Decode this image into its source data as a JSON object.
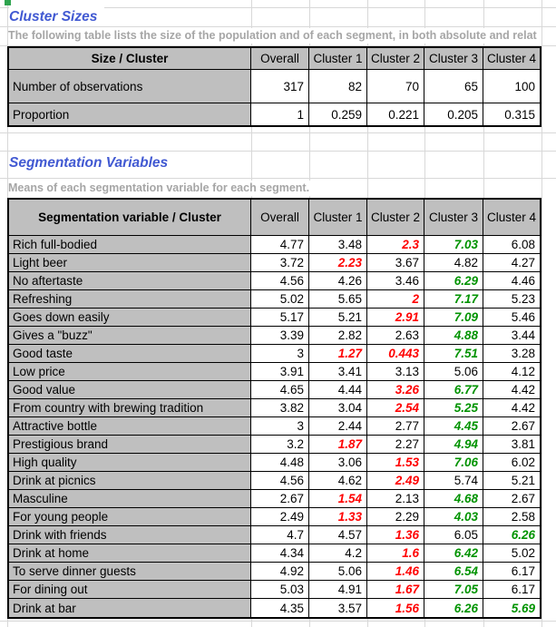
{
  "colors": {
    "title_blue": "#4159d2",
    "subtitle_gray": "#a6a6a6",
    "header_fill": "#bfbfbf",
    "low_value_red": "#ff0000",
    "high_value_green": "#009300",
    "selection_green": "#2ea44e"
  },
  "cluster_sizes": {
    "title": "Cluster Sizes",
    "subtitle": "The following table lists the size of the population and of each segment, in both absolute and relat",
    "table": {
      "header": [
        "Size / Cluster",
        "Overall",
        "Cluster 1",
        "Cluster 2",
        "Cluster 3",
        "Cluster 4"
      ],
      "rows": [
        {
          "label": "Number of observations",
          "values": [
            "317",
            "82",
            "70",
            "65",
            "100"
          ]
        },
        {
          "label": "Proportion",
          "values": [
            "1",
            "0.259",
            "0.221",
            "0.205",
            "0.315"
          ]
        }
      ]
    }
  },
  "segmentation_variables": {
    "title": "Segmentation Variables",
    "subtitle": "Means of each segmentation variable for each segment.",
    "table": {
      "header": [
        "Segmentation variable / Cluster",
        "Overall",
        "Cluster 1",
        "Cluster 2",
        "Cluster 3",
        "Cluster 4"
      ],
      "rows": [
        {
          "label": "Rich full-bodied",
          "values": [
            "4.77",
            "3.48",
            {
              "v": "2.3",
              "s": "low"
            },
            {
              "v": "7.03",
              "s": "high"
            },
            "6.08"
          ]
        },
        {
          "label": "Light beer",
          "values": [
            "3.72",
            {
              "v": "2.23",
              "s": "low"
            },
            "3.67",
            "4.82",
            "4.27"
          ]
        },
        {
          "label": "No aftertaste",
          "values": [
            "4.56",
            "4.26",
            "3.46",
            {
              "v": "6.29",
              "s": "high"
            },
            "4.46"
          ]
        },
        {
          "label": "Refreshing",
          "values": [
            "5.02",
            "5.65",
            {
              "v": "2",
              "s": "low"
            },
            {
              "v": "7.17",
              "s": "high"
            },
            "5.23"
          ]
        },
        {
          "label": "Goes down easily",
          "values": [
            "5.17",
            "5.21",
            {
              "v": "2.91",
              "s": "low"
            },
            {
              "v": "7.09",
              "s": "high"
            },
            "5.46"
          ]
        },
        {
          "label": "Gives a \"buzz\"",
          "values": [
            "3.39",
            "2.82",
            "2.63",
            {
              "v": "4.88",
              "s": "high"
            },
            "3.44"
          ]
        },
        {
          "label": "Good taste",
          "values": [
            "3",
            {
              "v": "1.27",
              "s": "low"
            },
            {
              "v": "0.443",
              "s": "low"
            },
            {
              "v": "7.51",
              "s": "high"
            },
            "3.28"
          ]
        },
        {
          "label": "Low price",
          "values": [
            "3.91",
            "3.41",
            "3.13",
            "5.06",
            "4.12"
          ]
        },
        {
          "label": "Good value",
          "values": [
            "4.65",
            "4.44",
            {
              "v": "3.26",
              "s": "low"
            },
            {
              "v": "6.77",
              "s": "high"
            },
            "4.42"
          ]
        },
        {
          "label": "From country with brewing tradition",
          "values": [
            "3.82",
            "3.04",
            {
              "v": "2.54",
              "s": "low"
            },
            {
              "v": "5.25",
              "s": "high"
            },
            "4.42"
          ]
        },
        {
          "label": "Attractive bottle",
          "values": [
            "3",
            "2.44",
            "2.77",
            {
              "v": "4.45",
              "s": "high"
            },
            "2.67"
          ]
        },
        {
          "label": "Prestigious brand",
          "values": [
            "3.2",
            {
              "v": "1.87",
              "s": "low"
            },
            "2.27",
            {
              "v": "4.94",
              "s": "high"
            },
            "3.81"
          ]
        },
        {
          "label": "High quality",
          "values": [
            "4.48",
            "3.06",
            {
              "v": "1.53",
              "s": "low"
            },
            {
              "v": "7.06",
              "s": "high"
            },
            "6.02"
          ]
        },
        {
          "label": "Drink at picnics",
          "values": [
            "4.56",
            "4.62",
            {
              "v": "2.49",
              "s": "low"
            },
            "5.74",
            "5.21"
          ]
        },
        {
          "label": "Masculine",
          "values": [
            "2.67",
            {
              "v": "1.54",
              "s": "low"
            },
            "2.13",
            {
              "v": "4.68",
              "s": "high"
            },
            "2.67"
          ]
        },
        {
          "label": "For young people",
          "values": [
            "2.49",
            {
              "v": "1.33",
              "s": "low"
            },
            "2.29",
            {
              "v": "4.03",
              "s": "high"
            },
            "2.58"
          ]
        },
        {
          "label": "Drink with friends",
          "values": [
            "4.7",
            "4.57",
            {
              "v": "1.36",
              "s": "low"
            },
            "6.05",
            {
              "v": "6.26",
              "s": "high"
            }
          ]
        },
        {
          "label": "Drink at home",
          "values": [
            "4.34",
            "4.2",
            {
              "v": "1.6",
              "s": "low"
            },
            {
              "v": "6.42",
              "s": "high"
            },
            "5.02"
          ]
        },
        {
          "label": "To serve dinner guests",
          "values": [
            "4.92",
            "5.06",
            {
              "v": "1.46",
              "s": "low"
            },
            {
              "v": "6.54",
              "s": "high"
            },
            "6.17"
          ]
        },
        {
          "label": "For dining out",
          "values": [
            "5.03",
            "4.91",
            {
              "v": "1.67",
              "s": "low"
            },
            {
              "v": "7.05",
              "s": "high"
            },
            "6.17"
          ]
        },
        {
          "label": "Drink at bar",
          "values": [
            "4.35",
            "3.57",
            {
              "v": "1.56",
              "s": "low"
            },
            {
              "v": "6.26",
              "s": "high"
            },
            {
              "v": "5.69",
              "s": "high"
            }
          ]
        }
      ]
    }
  }
}
